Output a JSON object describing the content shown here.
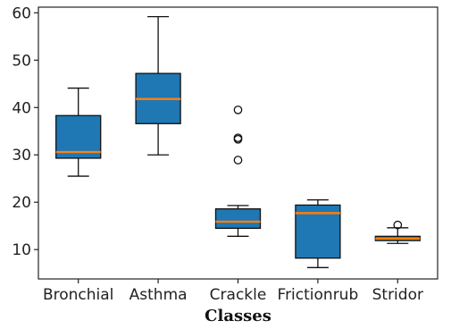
{
  "chart_data": {
    "type": "boxplot",
    "title": "",
    "xlabel": "Classes",
    "ylabel": "",
    "ylim": [
      3.8,
      61.2
    ],
    "yticks": [
      10,
      20,
      30,
      40,
      50,
      60
    ],
    "grid": false,
    "box_color": "#1f77b4",
    "median_color": "#ff7f0e",
    "categories": [
      "Bronchial",
      "Asthma",
      "Crackle",
      "Frictionrub",
      "Stridor"
    ],
    "boxes": [
      {
        "category": "Bronchial",
        "whisker_low": 25.5,
        "q1": 29.3,
        "median": 30.6,
        "q3": 38.3,
        "whisker_high": 44.1,
        "outliers": []
      },
      {
        "category": "Asthma",
        "whisker_low": 30.0,
        "q1": 36.6,
        "median": 41.8,
        "q3": 47.2,
        "whisker_high": 59.2,
        "outliers": []
      },
      {
        "category": "Crackle",
        "whisker_low": 12.8,
        "q1": 14.5,
        "median": 15.9,
        "q3": 18.6,
        "whisker_high": 19.3,
        "outliers": [
          28.9,
          33.3,
          33.6,
          39.5
        ]
      },
      {
        "category": "Frictionrub",
        "whisker_low": 6.2,
        "q1": 8.2,
        "median": 17.7,
        "q3": 19.4,
        "whisker_high": 20.5,
        "outliers": []
      },
      {
        "category": "Stridor",
        "whisker_low": 11.3,
        "q1": 11.9,
        "median": 12.3,
        "q3": 12.8,
        "whisker_high": 14.6,
        "outliers": [
          15.2
        ]
      }
    ]
  }
}
